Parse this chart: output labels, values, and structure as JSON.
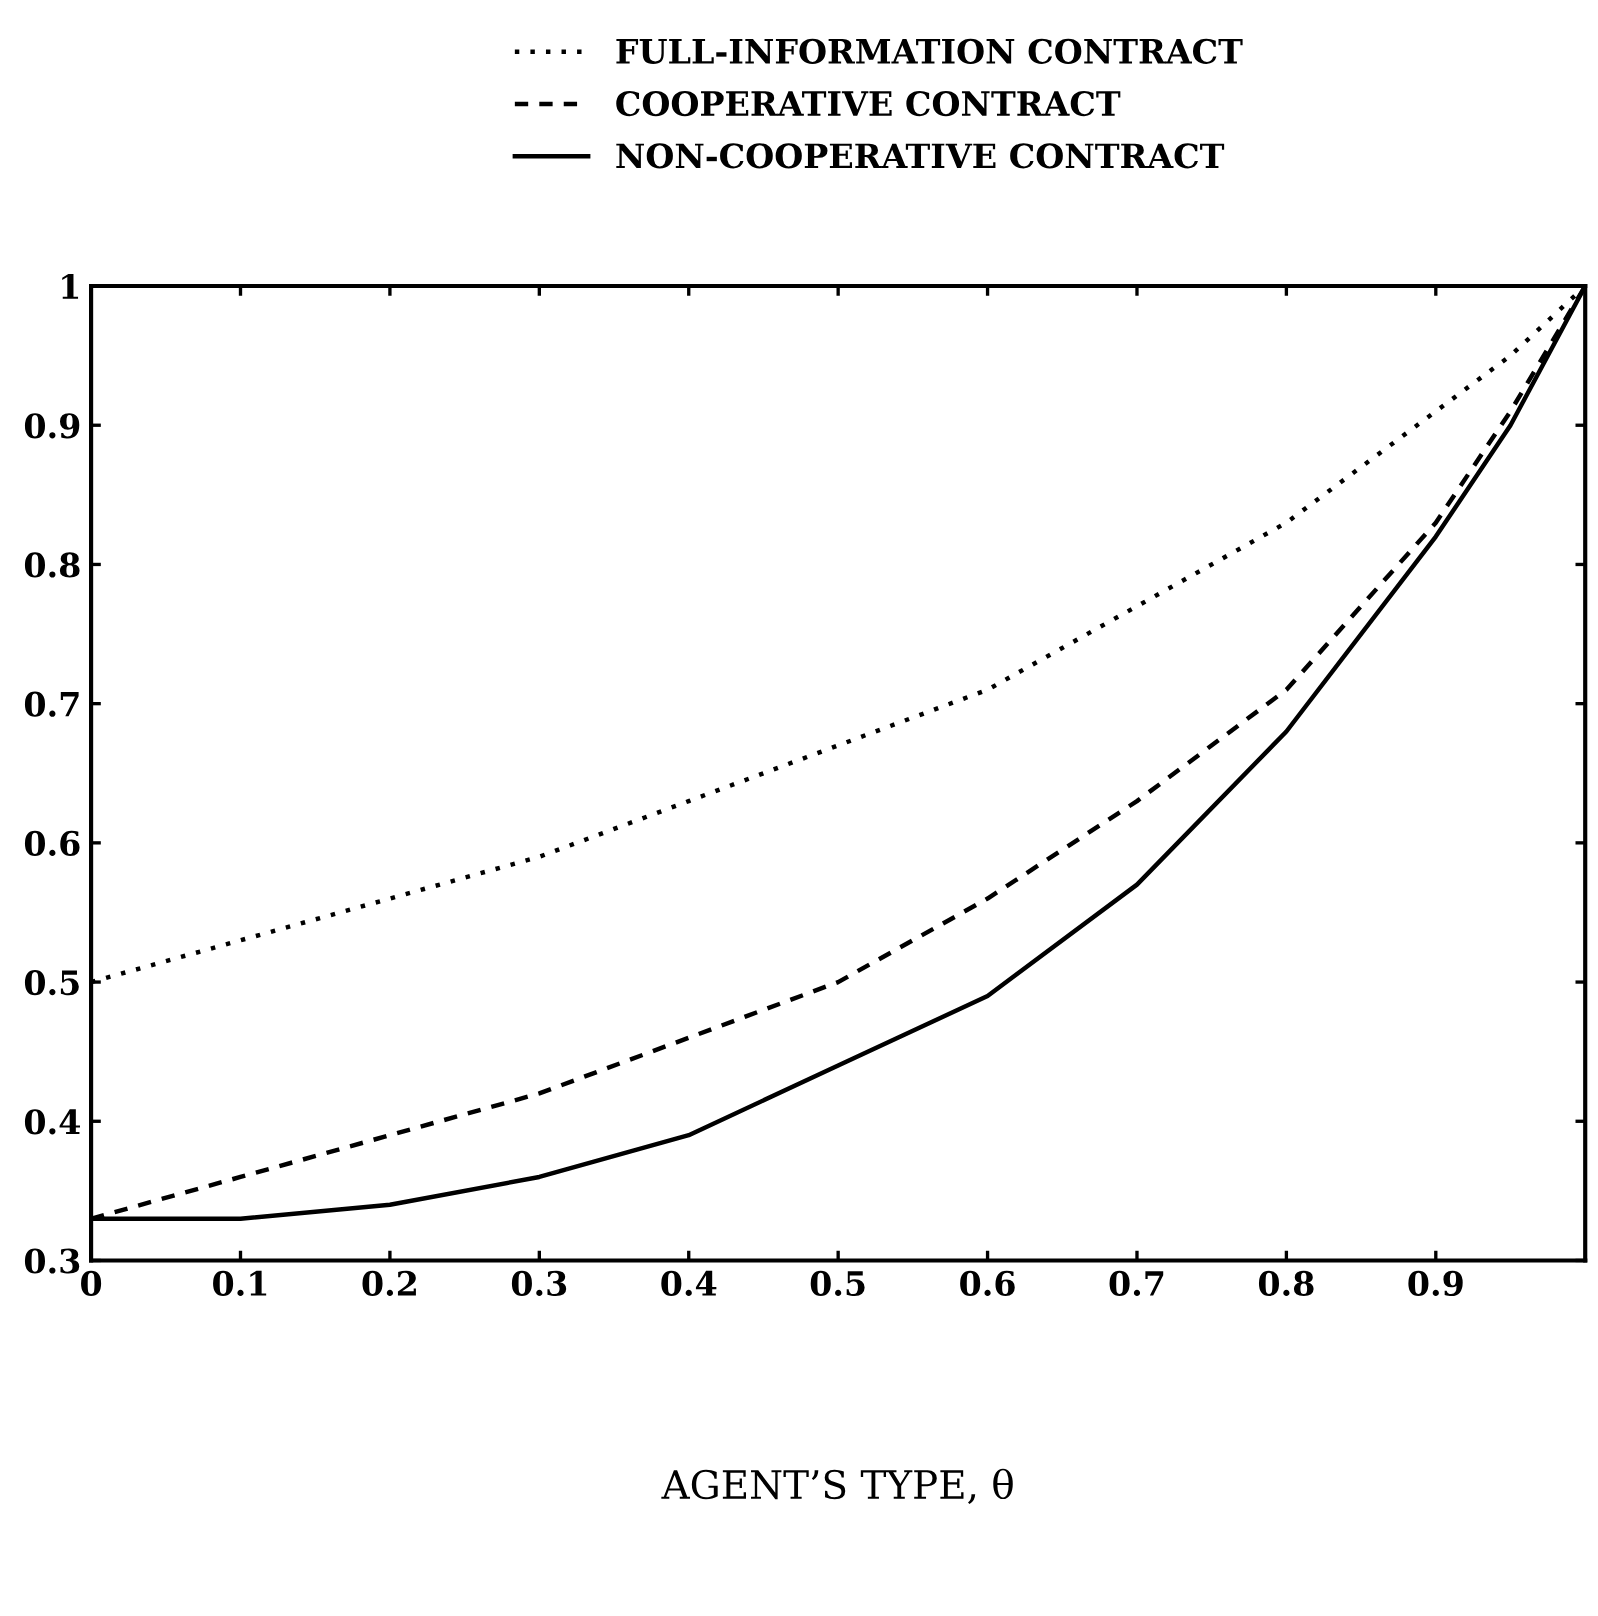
{
  "chart_data": {
    "type": "line",
    "xlabel": "AGENT’S TYPE, θ",
    "legend": "top",
    "x": [
      0,
      0.1,
      0.2,
      0.3,
      0.4,
      0.5,
      0.6,
      0.7,
      0.8,
      0.9,
      0.95,
      1.0
    ],
    "series": [
      {
        "name": "FULL-INFORMATION CONTRACT",
        "color": "#000000",
        "line_style": "dotted",
        "values": [
          0.5,
          0.53,
          0.56,
          0.59,
          0.63,
          0.67,
          0.71,
          0.77,
          0.83,
          0.91,
          0.95,
          1.0
        ]
      },
      {
        "name": "COOPERATIVE CONTRACT",
        "color": "#000000",
        "line_style": "dashed",
        "values": [
          0.33,
          0.36,
          0.39,
          0.42,
          0.46,
          0.5,
          0.56,
          0.63,
          0.71,
          0.83,
          0.91,
          1.0
        ]
      },
      {
        "name": "NON-COOPERATIVE CONTRACT",
        "color": "#000000",
        "line_style": "solid",
        "values": [
          0.33,
          0.33,
          0.34,
          0.36,
          0.39,
          0.44,
          0.49,
          0.57,
          0.68,
          0.82,
          0.9,
          1.0
        ]
      }
    ],
    "xlim": [
      0,
      1
    ],
    "xticks": [
      0,
      0.1,
      0.2,
      0.3,
      0.4,
      0.5,
      0.6,
      0.7,
      0.8,
      0.9
    ],
    "ylim": [
      0.3,
      1
    ],
    "yticks": [
      0.3,
      0.4,
      0.5,
      0.6,
      0.7,
      0.8,
      0.9,
      {
        "value": 1,
        "label": "1"
      }
    ],
    "grid": false,
    "marker": "none"
  }
}
